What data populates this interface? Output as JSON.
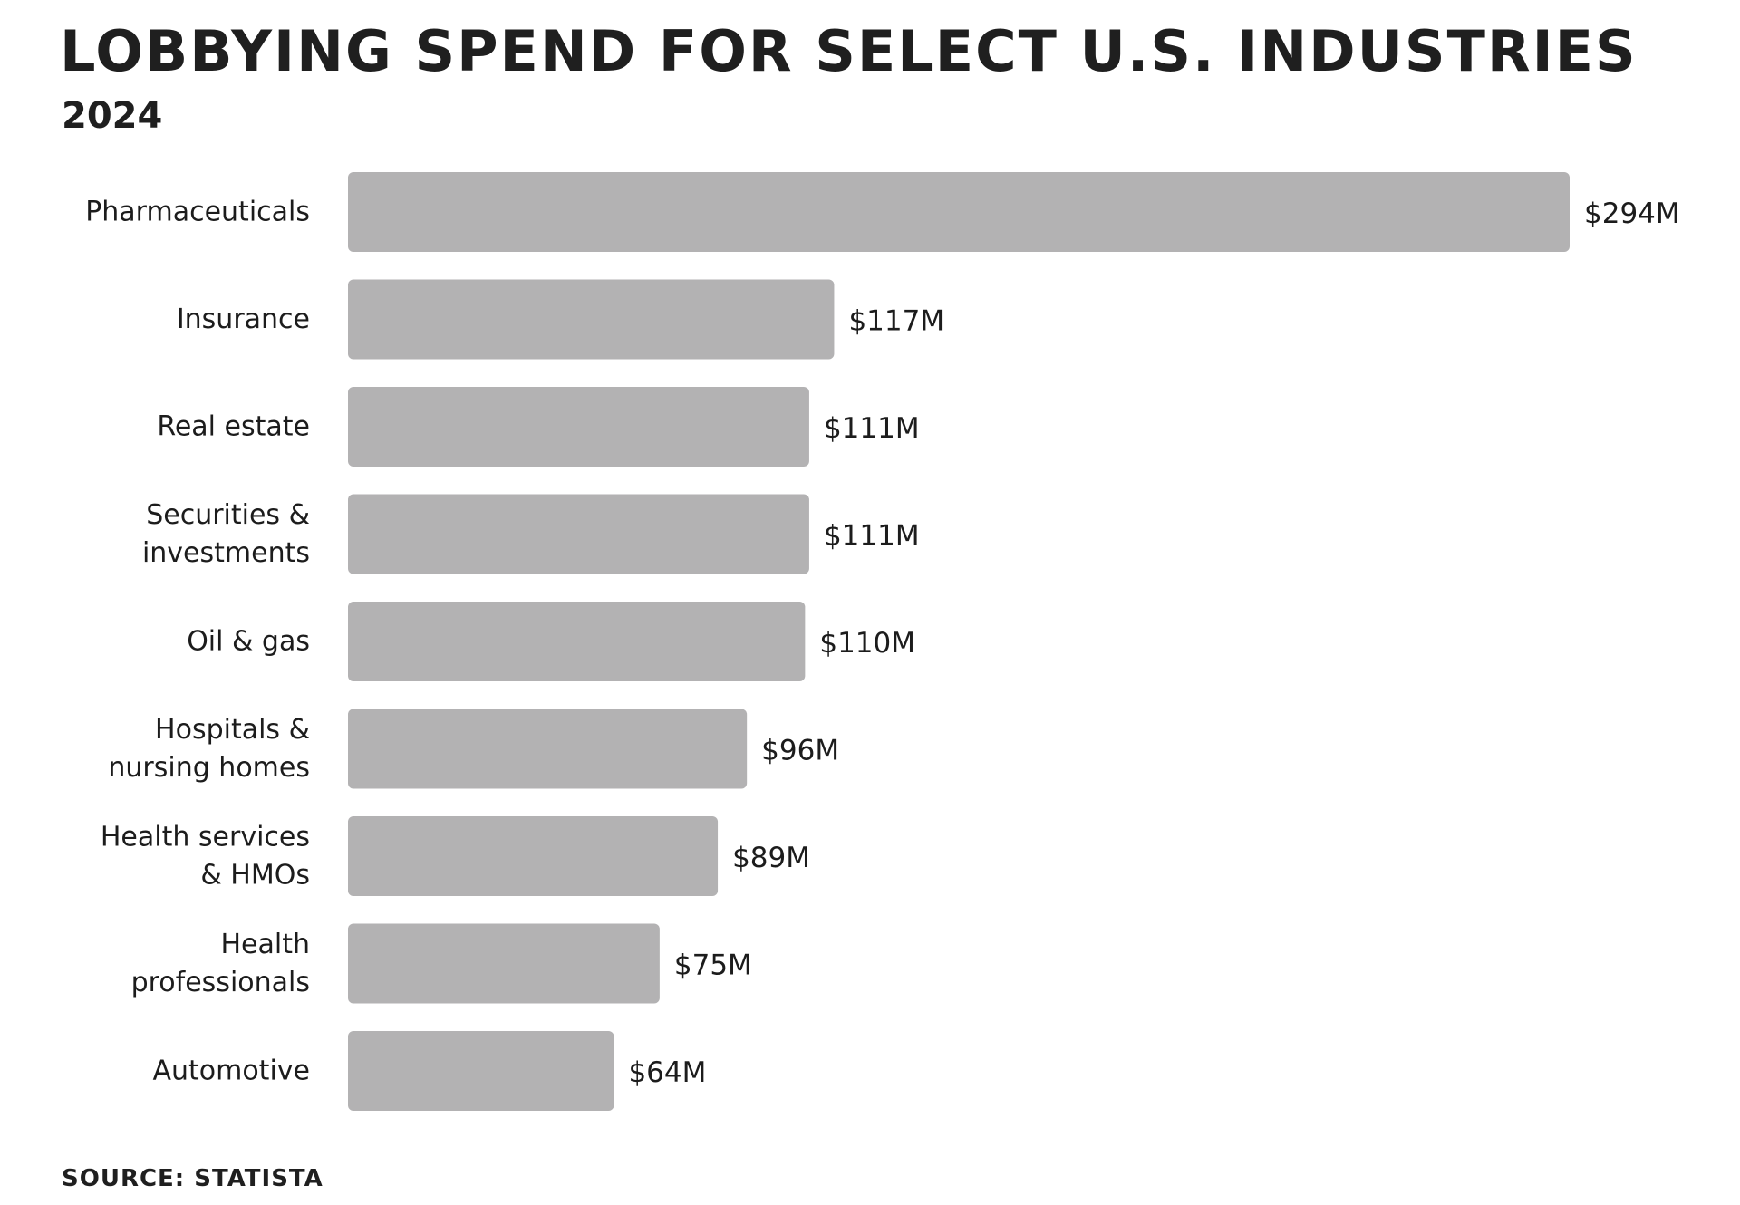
{
  "header": {
    "title": "Lobbying spend for select U.S. industries",
    "subtitle": "2024"
  },
  "footer": {
    "source": "Source: Statista"
  },
  "chart_data": {
    "type": "bar",
    "orientation": "horizontal",
    "title": "Lobbying spend for select U.S. industries",
    "subtitle": "2024",
    "unit": "millions of US dollars",
    "bar_color": "#b3b2b3",
    "grid": false,
    "legend": "none",
    "categories": [
      [
        "Pharmaceuticals"
      ],
      [
        "Insurance"
      ],
      [
        "Real estate"
      ],
      [
        "Securities &",
        "investments"
      ],
      [
        "Oil & gas"
      ],
      [
        "Hospitals &",
        "nursing homes"
      ],
      [
        "Health services",
        "& HMOs"
      ],
      [
        "Health",
        "professionals"
      ],
      [
        "Automotive"
      ]
    ],
    "values": [
      294,
      117,
      111,
      111,
      110,
      96,
      89,
      75,
      64
    ],
    "value_labels": [
      "$294M",
      "$117M",
      "$111M",
      "$111M",
      "$110M",
      "$96M",
      "$89M",
      "$75M",
      "$64M"
    ],
    "xlim": [
      0,
      294
    ]
  }
}
